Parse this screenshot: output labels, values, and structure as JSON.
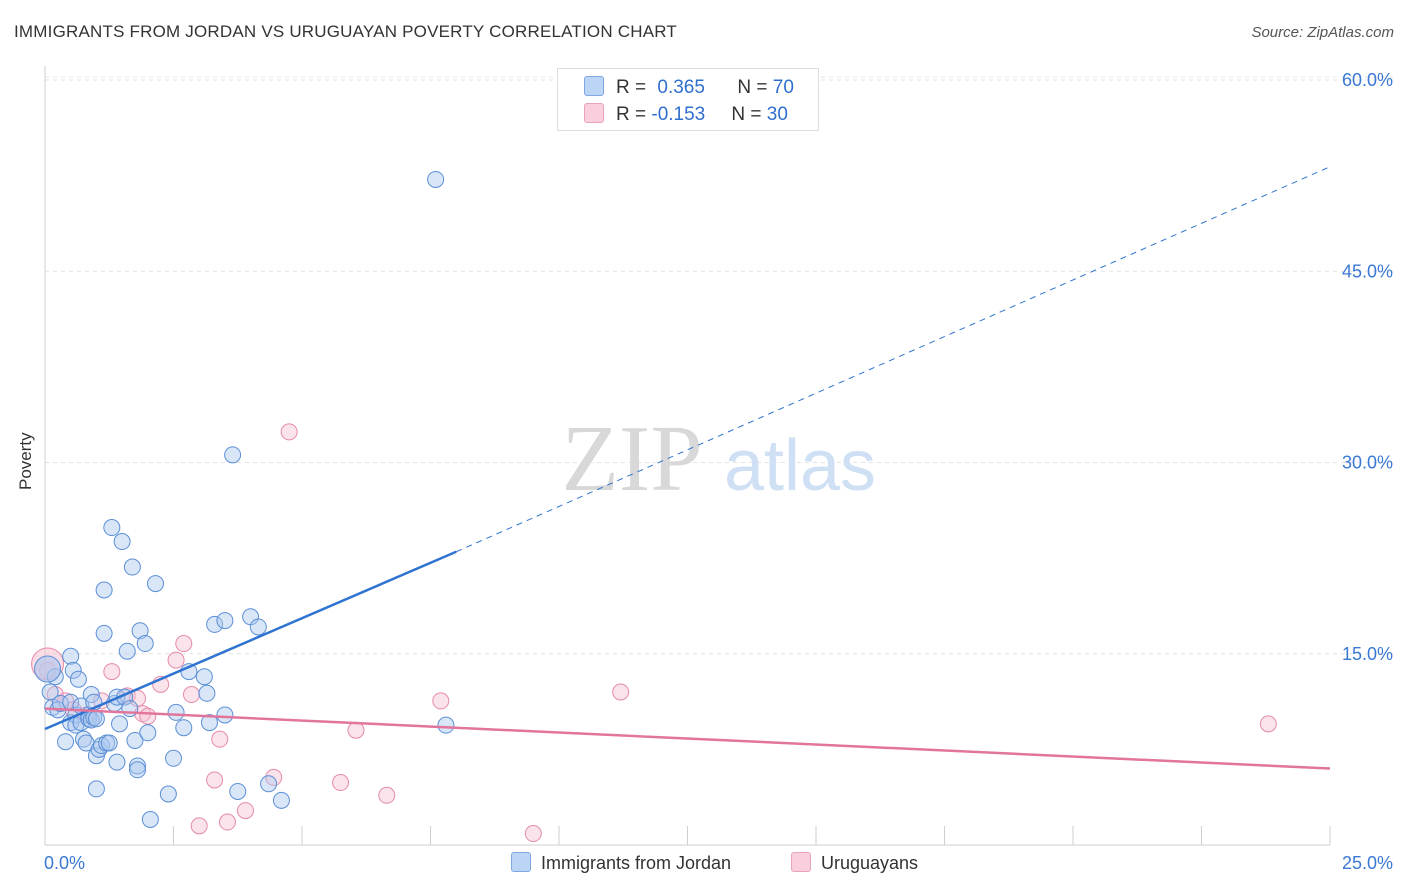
{
  "title": "IMMIGRANTS FROM JORDAN VS URUGUAYAN POVERTY CORRELATION CHART",
  "source": "Source: ZipAtlas.com",
  "watermark": {
    "zip": "ZIP",
    "atlas": "atlas"
  },
  "legend_top": {
    "rows": [
      {
        "r_label": "R = ",
        "r_value": "0.365",
        "n_label": "N = ",
        "n_value": "70",
        "color": "#9dc0ef"
      },
      {
        "r_label": "R = ",
        "r_value": "-0.153",
        "n_label": "N = ",
        "n_value": "30",
        "color": "#f5b8cb"
      }
    ]
  },
  "legend_bottom": [
    {
      "label": "Immigrants from Jordan",
      "color": "#9dc0ef"
    },
    {
      "label": "Uruguayans",
      "color": "#f5b8cb"
    }
  ],
  "chart_data": {
    "type": "scatter",
    "title": "IMMIGRANTS FROM JORDAN VS URUGUAYAN POVERTY CORRELATION CHART",
    "xlabel": "",
    "ylabel": "Poverty",
    "xlim": [
      0,
      25
    ],
    "ylim": [
      0,
      60
    ],
    "x_tick_labels": [
      "0.0%",
      "25.0%"
    ],
    "y_tick_values": [
      15,
      30,
      45,
      60
    ],
    "y_tick_labels": [
      "15.0%",
      "30.0%",
      "45.0%",
      "60.0%"
    ],
    "grid": true,
    "colors": {
      "blue_fill": "#aac8f0",
      "blue_stroke": "#5b8fd6",
      "blue_line": "#2f74d0",
      "pink_fill": "#f7c1d2",
      "pink_stroke": "#e58aa8",
      "pink_line": "#e2759c",
      "axis_text": "#3a78d4"
    },
    "series": [
      {
        "name": "Immigrants from Jordan",
        "color": "#9dc0ef",
        "points": [
          [
            0.1,
            12.0
          ],
          [
            0.15,
            10.8
          ],
          [
            0.2,
            13.2
          ],
          [
            0.25,
            10.6
          ],
          [
            0.3,
            11.1
          ],
          [
            0.4,
            8.1
          ],
          [
            0.5,
            14.8
          ],
          [
            0.5,
            9.6
          ],
          [
            0.5,
            11.2
          ],
          [
            0.55,
            13.7
          ],
          [
            0.6,
            10.2
          ],
          [
            0.6,
            9.4
          ],
          [
            0.65,
            13.0
          ],
          [
            0.7,
            10.9
          ],
          [
            0.7,
            9.6
          ],
          [
            0.75,
            8.3
          ],
          [
            0.8,
            8.0
          ],
          [
            0.85,
            10.2
          ],
          [
            0.85,
            9.9
          ],
          [
            0.9,
            11.8
          ],
          [
            0.9,
            9.8
          ],
          [
            0.95,
            11.2
          ],
          [
            0.95,
            10.0
          ],
          [
            1.0,
            7.0
          ],
          [
            1.0,
            9.9
          ],
          [
            1.0,
            4.4
          ],
          [
            1.05,
            7.5
          ],
          [
            1.1,
            7.8
          ],
          [
            1.15,
            20.0
          ],
          [
            1.15,
            16.6
          ],
          [
            1.2,
            8.0
          ],
          [
            1.25,
            8.0
          ],
          [
            1.3,
            24.9
          ],
          [
            1.35,
            11.1
          ],
          [
            1.4,
            6.5
          ],
          [
            1.4,
            11.6
          ],
          [
            1.45,
            9.5
          ],
          [
            1.5,
            23.8
          ],
          [
            1.55,
            11.6
          ],
          [
            1.6,
            15.2
          ],
          [
            1.65,
            10.7
          ],
          [
            1.7,
            21.8
          ],
          [
            1.75,
            8.2
          ],
          [
            1.8,
            6.2
          ],
          [
            1.8,
            5.9
          ],
          [
            1.85,
            16.8
          ],
          [
            1.95,
            15.8
          ],
          [
            2.0,
            8.8
          ],
          [
            2.05,
            2.0
          ],
          [
            2.15,
            20.5
          ],
          [
            2.4,
            4.0
          ],
          [
            2.5,
            6.8
          ],
          [
            2.55,
            10.4
          ],
          [
            2.7,
            9.2
          ],
          [
            2.8,
            13.6
          ],
          [
            3.1,
            13.2
          ],
          [
            3.15,
            11.9
          ],
          [
            3.2,
            9.6
          ],
          [
            3.3,
            17.3
          ],
          [
            3.5,
            10.2
          ],
          [
            3.5,
            17.6
          ],
          [
            3.65,
            30.6
          ],
          [
            3.75,
            4.2
          ],
          [
            4.0,
            17.9
          ],
          [
            4.15,
            17.1
          ],
          [
            4.35,
            4.8
          ],
          [
            4.6,
            3.5
          ],
          [
            7.8,
            9.4
          ],
          [
            7.6,
            52.2
          ],
          [
            0.05,
            13.8
          ]
        ],
        "trend": {
          "x0": 0,
          "y0": 9.1,
          "x1": 8.0,
          "y1": 23.0,
          "dashed_to_x": 25,
          "dashed_to_y": 53.2
        }
      },
      {
        "name": "Uruguayans",
        "color": "#f5b8cb",
        "points": [
          [
            0.05,
            13.7
          ],
          [
            0.2,
            11.8
          ],
          [
            0.4,
            11.3
          ],
          [
            0.55,
            10.6
          ],
          [
            0.8,
            10.2
          ],
          [
            1.1,
            11.3
          ],
          [
            1.3,
            13.6
          ],
          [
            1.6,
            11.7
          ],
          [
            1.8,
            11.5
          ],
          [
            1.9,
            10.3
          ],
          [
            2.0,
            10.1
          ],
          [
            2.25,
            12.6
          ],
          [
            2.55,
            14.5
          ],
          [
            2.7,
            15.8
          ],
          [
            2.85,
            11.8
          ],
          [
            3.0,
            1.5
          ],
          [
            3.3,
            5.1
          ],
          [
            3.4,
            8.3
          ],
          [
            3.55,
            1.8
          ],
          [
            3.9,
            2.7
          ],
          [
            4.45,
            5.3
          ],
          [
            4.75,
            32.4
          ],
          [
            5.75,
            4.9
          ],
          [
            6.05,
            9.0
          ],
          [
            6.65,
            3.9
          ],
          [
            7.7,
            11.3
          ],
          [
            9.5,
            0.9
          ],
          [
            11.2,
            12.0
          ],
          [
            23.8,
            9.5
          ],
          [
            0.05,
            14.2
          ]
        ],
        "trend": {
          "x0": 0,
          "y0": 10.7,
          "x1": 25,
          "y1": 6.0
        }
      }
    ]
  }
}
